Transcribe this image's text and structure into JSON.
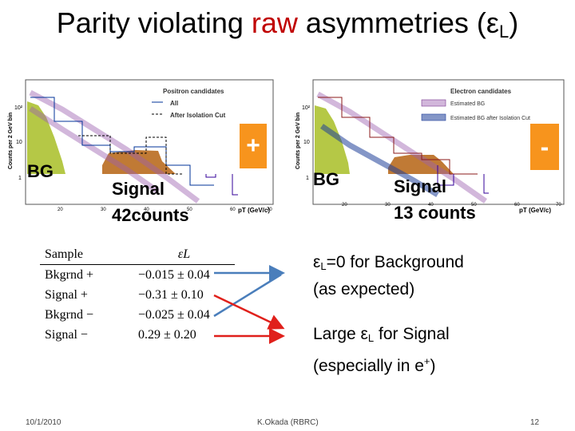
{
  "slide": {
    "title_pre": "Parity violating ",
    "title_raw": "raw",
    "title_post": " asymmetries (",
    "title_eps": "ε",
    "title_sub": "L",
    "title_close": ")",
    "left_plot": {
      "ylabel": "Counts per 2 GeV bin",
      "xlabel": "pT (GeV/c)",
      "y_ticks": [
        "10²",
        "10",
        "1"
      ],
      "x_ticks": [
        "20",
        "30",
        "40",
        "50",
        "60",
        "70"
      ],
      "legend_title": "Positron candidates",
      "legend_all": "All",
      "legend_after": "After Isolation Cut",
      "bg_label": "BG",
      "signal_label": "Signal",
      "signal_counts": "42counts",
      "sign": "+"
    },
    "right_plot": {
      "ylabel": "Counts per 2 GeV bin",
      "xlabel": "pT (GeV/c)",
      "y_ticks": [
        "10²",
        "10",
        "1"
      ],
      "x_ticks": [
        "20",
        "30",
        "40",
        "50",
        "60",
        "70"
      ],
      "legend_title": "Electron candidates",
      "legend_est": "Estimated BG",
      "legend_est_after": "Estimated BG after Isolation Cut",
      "bg_label": "BG",
      "signal_label": "Signal",
      "signal_counts": "13 counts",
      "sign": "-"
    },
    "table": {
      "header": [
        "Sample",
        "εL"
      ],
      "rows": [
        [
          "Bkgrnd +",
          "−0.015 ± 0.04"
        ],
        [
          "Signal +",
          "−0.31 ± 0.10"
        ],
        [
          "Bkgrnd −",
          "−0.025 ± 0.04"
        ],
        [
          "Signal −",
          "0.29 ± 0.20"
        ]
      ]
    },
    "bullet1_eps": "ε",
    "bullet1_sub": "L",
    "bullet1_rest": "=0 for Background",
    "bullet1_line2": "(as expected)",
    "bullet2_pre": "Large ",
    "bullet2_eps": "ε",
    "bullet2_sub": "L",
    "bullet2_rest": " for Signal",
    "bullet2_line2": "(especially in e",
    "bullet2_sup": "+",
    "bullet2_close": ")",
    "footer_date": "10/1/2010",
    "footer_author": "K.Okada (RBRC)",
    "footer_page": "12",
    "colors": {
      "accent_red": "#c00000",
      "orange": "#f7941d",
      "bg_fill": "#b5c846",
      "signal_fill": "#c07a35",
      "arrow_blue": "#4a7ebb",
      "arrow_red": "#e0201b"
    }
  }
}
